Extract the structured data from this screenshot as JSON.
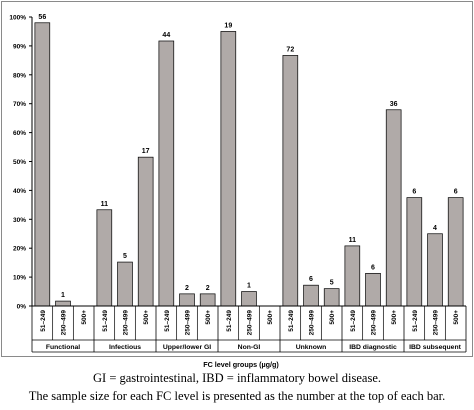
{
  "chart_data": {
    "type": "bar",
    "xlabel": "FC level  groups (µg/g)",
    "ylabel": "",
    "ylim": [
      0,
      100
    ],
    "ytick_labels": [
      "0%",
      "10%",
      "20%",
      "30%",
      "40%",
      "50%",
      "60%",
      "70%",
      "80%",
      "90%",
      "100%"
    ],
    "grid": false,
    "legend": "none",
    "colors": {
      "bar_fill": "#b0aaa8",
      "bar_stroke": "#000000",
      "axis": "#000000",
      "frame": "#8a8a8a"
    },
    "groups": [
      {
        "name": "Functional",
        "bars": [
          {
            "category": "51–249",
            "value": 98,
            "n": "56"
          },
          {
            "category": "250–499",
            "value": 1.7,
            "n": "1"
          },
          {
            "category": "500+",
            "value": 0,
            "n": ""
          }
        ]
      },
      {
        "name": "Infectious",
        "bars": [
          {
            "category": "51–249",
            "value": 33.3,
            "n": "11"
          },
          {
            "category": "250–499",
            "value": 15.2,
            "n": "5"
          },
          {
            "category": "500+",
            "value": 51.5,
            "n": "17"
          }
        ]
      },
      {
        "name": "Upper/lower GI",
        "bars": [
          {
            "category": "51–249",
            "value": 91.7,
            "n": "44"
          },
          {
            "category": "250–499",
            "value": 4.2,
            "n": "2"
          },
          {
            "category": "500+",
            "value": 4.2,
            "n": "2"
          }
        ]
      },
      {
        "name": "Non-GI",
        "bars": [
          {
            "category": "51–249",
            "value": 95,
            "n": "19"
          },
          {
            "category": "250–499",
            "value": 5,
            "n": "1"
          },
          {
            "category": "500+",
            "value": 0,
            "n": ""
          }
        ]
      },
      {
        "name": "Unknown",
        "bars": [
          {
            "category": "51–249",
            "value": 86.7,
            "n": "72"
          },
          {
            "category": "250–499",
            "value": 7.2,
            "n": "6"
          },
          {
            "category": "500+",
            "value": 6,
            "n": "5"
          }
        ]
      },
      {
        "name": "IBD diagnostic",
        "bars": [
          {
            "category": "51–249",
            "value": 20.8,
            "n": "11"
          },
          {
            "category": "250–499",
            "value": 11.3,
            "n": "6"
          },
          {
            "category": "500+",
            "value": 67.9,
            "n": "36"
          }
        ]
      },
      {
        "name": "IBD subsequent",
        "bars": [
          {
            "category": "51–249",
            "value": 37.5,
            "n": "6"
          },
          {
            "category": "250–499",
            "value": 25,
            "n": "4"
          },
          {
            "category": "500+",
            "value": 37.5,
            "n": "6"
          }
        ]
      }
    ]
  },
  "caption": {
    "line1": "GI = gastrointestinal, IBD = inflammatory bowel disease.",
    "line2": "The sample size for each FC level is presented as the number at the top of each bar."
  }
}
